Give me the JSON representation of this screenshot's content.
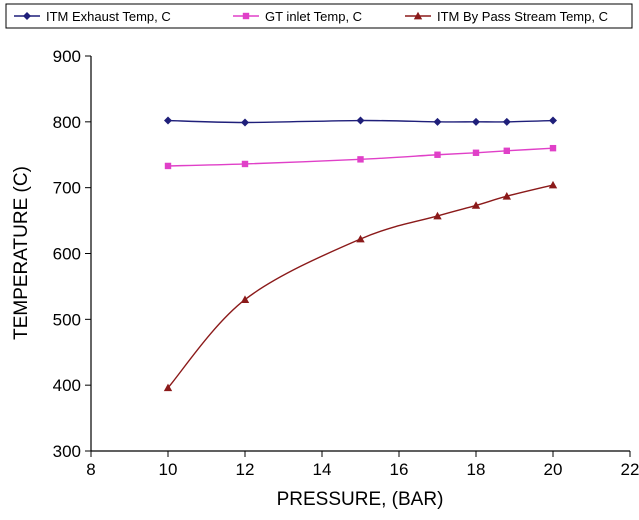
{
  "chart_data": {
    "type": "line",
    "xlabel": "PRESSURE, (BAR)",
    "ylabel": "TEMPERATURE (C)",
    "xlim": [
      8,
      22
    ],
    "ylim": [
      300,
      900
    ],
    "xticks": [
      "8",
      "10",
      "12",
      "14",
      "16",
      "18",
      "20",
      "22"
    ],
    "yticks": [
      "300",
      "400",
      "500",
      "600",
      "700",
      "800",
      "900"
    ],
    "grid": false,
    "legend_position": "top",
    "series": [
      {
        "name": "ITM Exhaust Temp, C",
        "color": "#1f1f7a",
        "marker": "diamond",
        "x": [
          10,
          12,
          15,
          17,
          18,
          18.8,
          20
        ],
        "y": [
          802,
          799,
          802,
          800,
          800,
          800,
          802
        ]
      },
      {
        "name": "GT inlet Temp, C",
        "color": "#e040c8",
        "marker": "square",
        "x": [
          10,
          12,
          15,
          17,
          18,
          18.8,
          20
        ],
        "y": [
          733,
          736,
          743,
          750,
          753,
          756,
          760
        ]
      },
      {
        "name": "ITM By Pass Stream Temp, C",
        "color": "#8b1a1a",
        "marker": "triangle",
        "x": [
          10,
          12,
          15,
          17,
          18,
          18.8,
          20
        ],
        "y": [
          396,
          530,
          622,
          657,
          673,
          687,
          704
        ]
      }
    ]
  }
}
